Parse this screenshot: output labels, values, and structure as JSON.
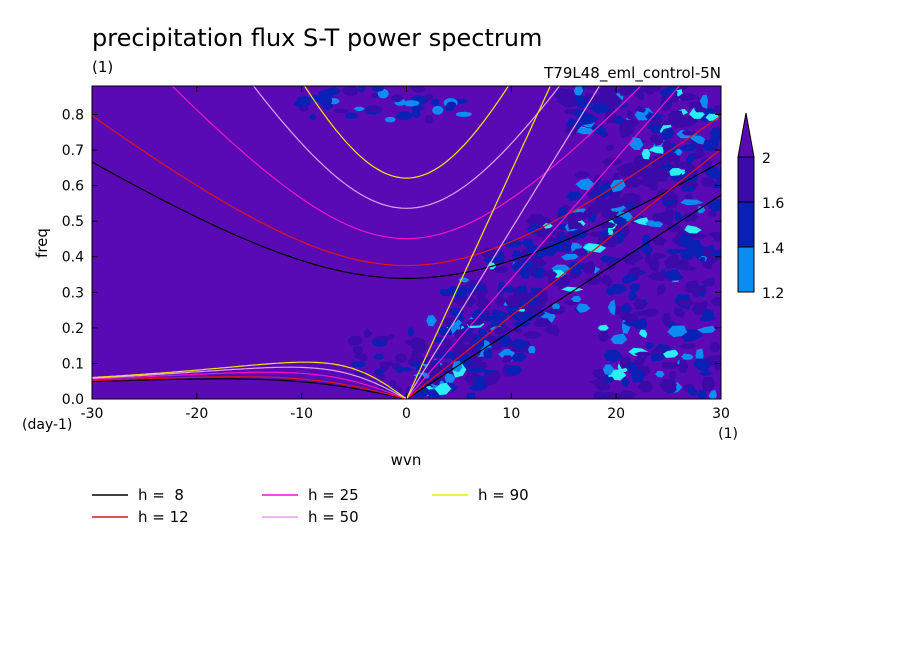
{
  "chart_data": {
    "type": "heatmap",
    "title": "precipitation flux S-T power spectrum",
    "subtitle_left": "(1)",
    "subtitle_right": "T79L48_eml_control-5N",
    "xlabel": "wvn",
    "ylabel": "freq",
    "x_unit": "(1)",
    "y_unit": "(day-1)",
    "xlim": [
      -30,
      30
    ],
    "ylim": [
      0,
      0.88
    ],
    "x_ticks": [
      -30,
      -20,
      -10,
      0,
      10,
      20,
      30
    ],
    "y_ticks": [
      0.0,
      0.1,
      0.2,
      0.3,
      0.4,
      0.5,
      0.6,
      0.7,
      0.8
    ],
    "x_tick_labels": [
      "-30",
      "-20",
      "-10",
      "0",
      "10",
      "20",
      "30"
    ],
    "y_tick_labels": [
      "0.0",
      "0.1",
      "0.2",
      "0.3",
      "0.4",
      "0.5",
      "0.6",
      "0.7",
      "0.8"
    ],
    "colorbar": {
      "levels": [
        1.2,
        1.4,
        1.6,
        2
      ],
      "labels": [
        "1.2",
        "1.4",
        "1.6",
        "2"
      ],
      "colors": [
        "#2af0f4",
        "#0a8cf0",
        "#0a20b4",
        "#3b0aa8"
      ],
      "background_color": "#5a0ab4"
    },
    "series": [
      {
        "name": "h =  8",
        "h": 8,
        "color": "#000000"
      },
      {
        "name": "h = 12",
        "h": 12,
        "color": "#e0141a"
      },
      {
        "name": "h = 25",
        "h": 25,
        "color": "#f014c8"
      },
      {
        "name": "h = 50",
        "h": 50,
        "color": "#e6a0e6"
      },
      {
        "name": "h = 90",
        "h": 90,
        "color": "#f0e614"
      }
    ]
  }
}
